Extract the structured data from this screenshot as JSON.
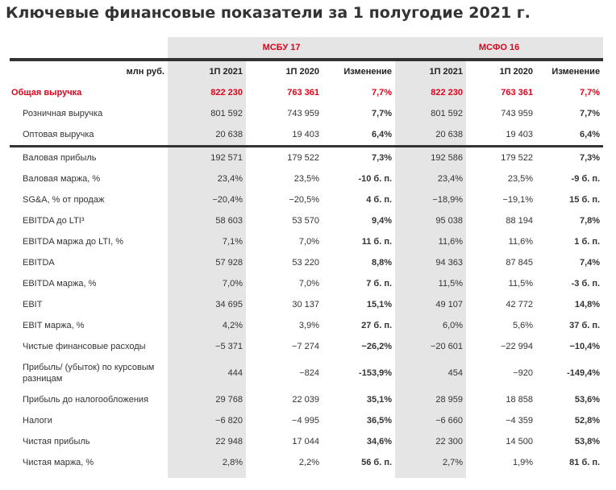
{
  "title": "Ключевые финансовые показатели за 1 полугодие 2021 г.",
  "standards": [
    "МСБУ 17",
    "МСФО 16"
  ],
  "columns": [
    "млн руб.",
    "1П 2021",
    "1П 2020",
    "Изменение",
    "1П 2021",
    "1П 2020",
    "Изменение"
  ],
  "accent_color": "#e2001a",
  "rows": [
    {
      "label": "Общая выручка",
      "values": [
        "822 230",
        "763 361",
        "7,7%",
        "822 230",
        "763 361",
        "7,7%"
      ],
      "style": "total"
    },
    {
      "label": "Розничная выручка",
      "values": [
        "801 592",
        "743 959",
        "7,7%",
        "801 592",
        "743 959",
        "7,7%"
      ],
      "style": "sub"
    },
    {
      "label": "Оптовая выручка",
      "values": [
        "20 638",
        "19 403",
        "6,4%",
        "20 638",
        "19 403",
        "6,4%"
      ],
      "style": "sub"
    },
    {
      "label": "Валовая прибыль",
      "values": [
        "192 571",
        "179 522",
        "7,3%",
        "192 586",
        "179 522",
        "7,3%"
      ],
      "style": "sep"
    },
    {
      "label": "Валовая маржа, %",
      "values": [
        "23,4%",
        "23,5%",
        "-10 б. п.",
        "23,4%",
        "23,5%",
        "-9 б. п."
      ]
    },
    {
      "label": "SG&A, % от продаж",
      "values": [
        "−20,4%",
        "−20,5%",
        "4 б. п.",
        "−18,9%",
        "−19,1%",
        "15 б. п."
      ]
    },
    {
      "label": "EBITDA до LTI³",
      "values": [
        "58 603",
        "53 570",
        "9,4%",
        "95 038",
        "88 194",
        "7,8%"
      ]
    },
    {
      "label": "EBITDA маржа до LTI, %",
      "values": [
        "7,1%",
        "7,0%",
        "11 б. п.",
        "11,6%",
        "11,6%",
        "1 б. п."
      ]
    },
    {
      "label": "EBITDA",
      "values": [
        "57 928",
        "53 220",
        "8,8%",
        "94 363",
        "87 845",
        "7,4%"
      ]
    },
    {
      "label": "EBITDA маржа, %",
      "values": [
        "7,0%",
        "7,0%",
        "7 б. п.",
        "11,5%",
        "11,5%",
        "-3 б. п."
      ]
    },
    {
      "label": "EBIT",
      "values": [
        "34 695",
        "30 137",
        "15,1%",
        "49 107",
        "42 772",
        "14,8%"
      ]
    },
    {
      "label": "EBIT маржа, %",
      "values": [
        "4,2%",
        "3,9%",
        "27 б. п.",
        "6,0%",
        "5,6%",
        "37 б. п."
      ]
    },
    {
      "label": "Чистые финансовые расходы",
      "values": [
        "−5 371",
        "−7 274",
        "−26,2%",
        "−20 601",
        "−22 994",
        "−10,4%"
      ]
    },
    {
      "label": "Прибыль/ (убыток) по курсовым разницам",
      "values": [
        "444",
        "−824",
        "-153,9%",
        "454",
        "−920",
        "-149,4%"
      ],
      "style": "tall"
    },
    {
      "label": "Прибыль до налогообложения",
      "values": [
        "29 768",
        "22 039",
        "35,1%",
        "28 959",
        "18 858",
        "53,6%"
      ]
    },
    {
      "label": "Налоги",
      "values": [
        "−6 820",
        "−4 995",
        "36,5%",
        "−6 660",
        "−4 359",
        "52,8%"
      ]
    },
    {
      "label": "Чистая прибыль",
      "values": [
        "22 948",
        "17 044",
        "34,6%",
        "22 300",
        "14 500",
        "53,8%"
      ]
    },
    {
      "label": "Чистая маржа, %",
      "values": [
        "2,8%",
        "2,2%",
        "56 б. п.",
        "2,7%",
        "1,9%",
        "81 б. п."
      ]
    }
  ]
}
